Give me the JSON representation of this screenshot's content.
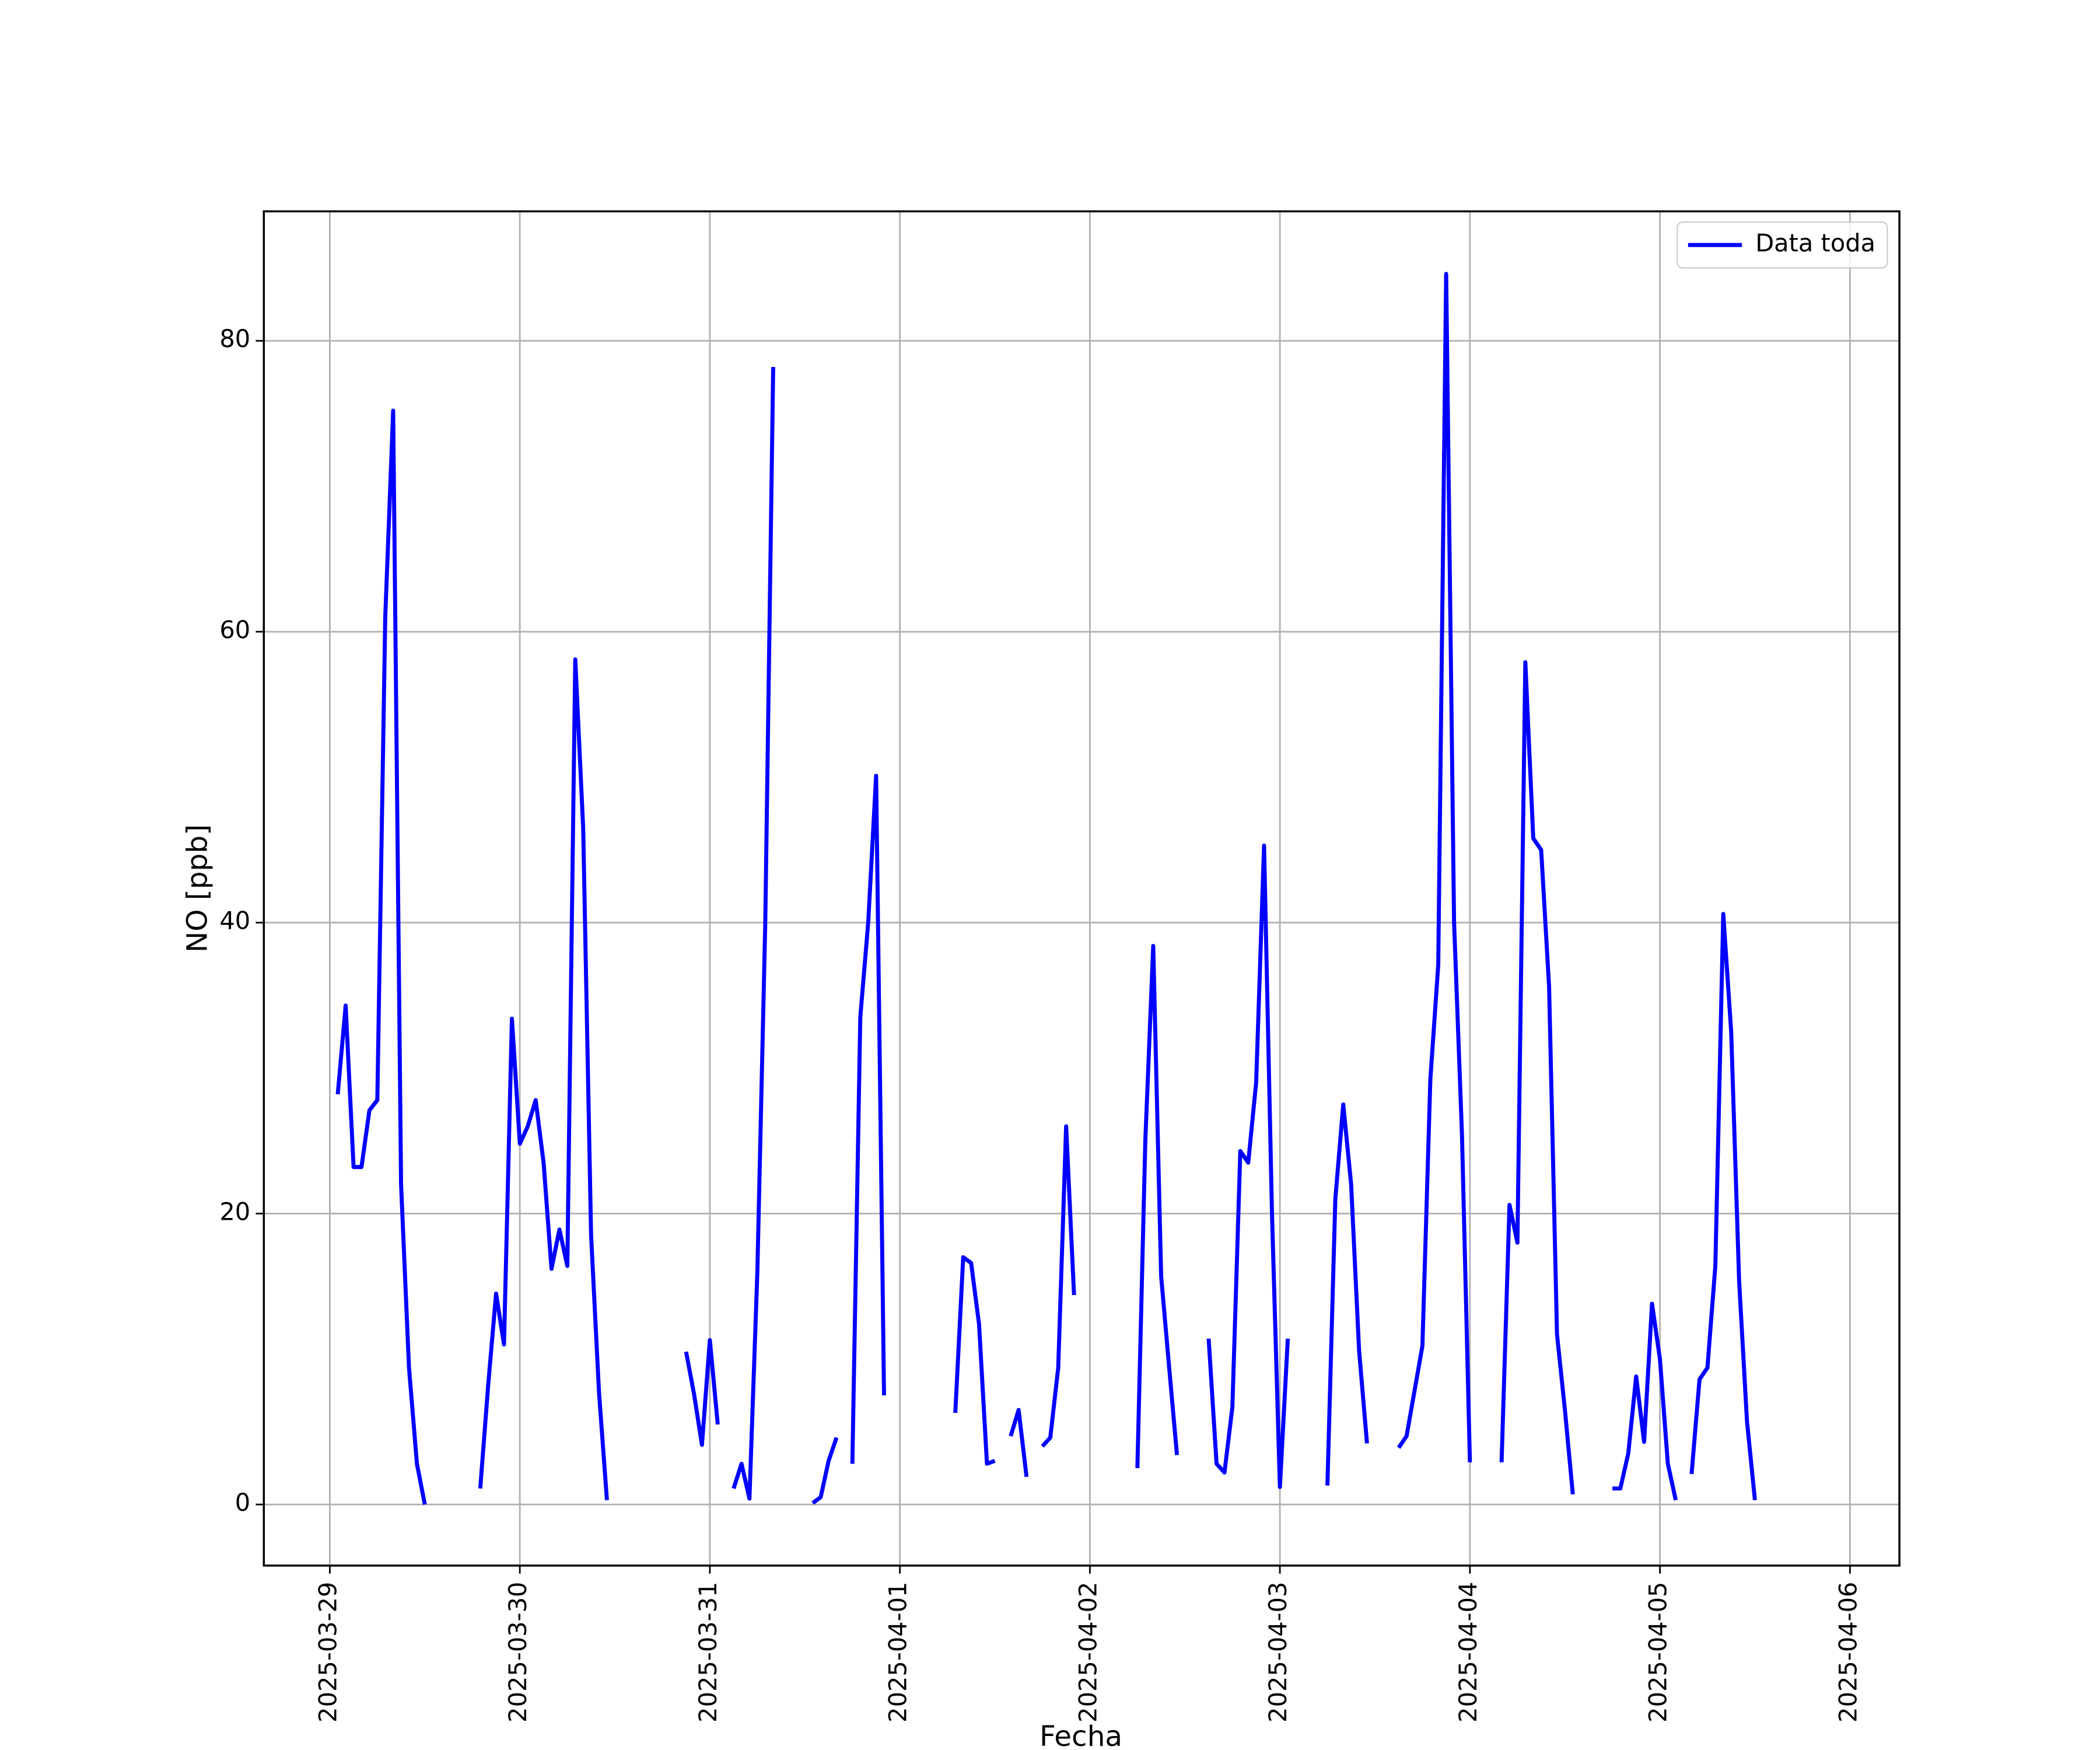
{
  "chart_data": {
    "type": "line",
    "xlabel": "Fecha",
    "ylabel": "NO [ppb]",
    "xlim": [
      "2025-03-28 15:40",
      "2025-04-06 06:15"
    ],
    "xticks": [
      "2025-03-29",
      "2025-03-30",
      "2025-03-31",
      "2025-04-01",
      "2025-04-02",
      "2025-04-03",
      "2025-04-04",
      "2025-04-05",
      "2025-04-06"
    ],
    "ylim": [
      -4.2,
      88.9
    ],
    "yticks": [
      0,
      20,
      40,
      60,
      80
    ],
    "grid": true,
    "legend": "upper right",
    "x": [
      "2025-03-29 01:00",
      "2025-03-29 02:00",
      "2025-03-29 03:00",
      "2025-03-29 04:00",
      "2025-03-29 05:00",
      "2025-03-29 06:00",
      "2025-03-29 07:00",
      "2025-03-29 08:00",
      "2025-03-29 09:00",
      "2025-03-29 10:00",
      "2025-03-29 11:00",
      "2025-03-29 12:00",
      "2025-03-29 13:00",
      "2025-03-29 19:00",
      "2025-03-29 20:00",
      "2025-03-29 21:00",
      "2025-03-29 22:00",
      "2025-03-29 23:00",
      "2025-03-30 00:00",
      "2025-03-30 01:00",
      "2025-03-30 02:00",
      "2025-03-30 03:00",
      "2025-03-30 04:00",
      "2025-03-30 05:00",
      "2025-03-30 06:00",
      "2025-03-30 07:00",
      "2025-03-30 08:00",
      "2025-03-30 09:00",
      "2025-03-30 10:00",
      "2025-03-30 11:00",
      "2025-03-30 12:00",
      "2025-03-30 21:00",
      "2025-03-30 22:00",
      "2025-03-30 23:00",
      "2025-03-31 00:00",
      "2025-03-31 01:00",
      "2025-03-31 02:00",
      "2025-03-31 03:00",
      "2025-03-31 04:00",
      "2025-03-31 05:00",
      "2025-03-31 06:00",
      "2025-03-31 07:00",
      "2025-03-31 08:00",
      "2025-03-31 09:00",
      "2025-03-31 13:00",
      "2025-03-31 14:00",
      "2025-03-31 15:00",
      "2025-03-31 16:00",
      "2025-03-31 17:00",
      "2025-03-31 18:00",
      "2025-03-31 19:00",
      "2025-03-31 20:00",
      "2025-03-31 21:00",
      "2025-03-31 22:00",
      "2025-03-31 23:00",
      "2025-04-01 07:00",
      "2025-04-01 08:00",
      "2025-04-01 09:00",
      "2025-04-01 10:00",
      "2025-04-01 11:00",
      "2025-04-01 12:00",
      "2025-04-01 13:00",
      "2025-04-01 14:00",
      "2025-04-01 15:00",
      "2025-04-01 16:00",
      "2025-04-01 17:00",
      "2025-04-01 18:00",
      "2025-04-01 19:00",
      "2025-04-01 20:00",
      "2025-04-01 21:00",
      "2025-04-01 22:00",
      "2025-04-01 23:00",
      "2025-04-02 06:00",
      "2025-04-02 07:00",
      "2025-04-02 08:00",
      "2025-04-02 09:00",
      "2025-04-02 10:00",
      "2025-04-02 11:00",
      "2025-04-02 12:00",
      "2025-04-02 15:00",
      "2025-04-02 16:00",
      "2025-04-02 17:00",
      "2025-04-02 18:00",
      "2025-04-02 19:00",
      "2025-04-02 20:00",
      "2025-04-02 21:00",
      "2025-04-02 22:00",
      "2025-04-02 23:00",
      "2025-04-03 00:00",
      "2025-04-03 01:00",
      "2025-04-03 02:00",
      "2025-04-03 06:00",
      "2025-04-03 07:00",
      "2025-04-03 08:00",
      "2025-04-03 09:00",
      "2025-04-03 10:00",
      "2025-04-03 11:00",
      "2025-04-03 12:00",
      "2025-04-03 15:00",
      "2025-04-03 16:00",
      "2025-04-03 17:00",
      "2025-04-03 18:00",
      "2025-04-03 19:00",
      "2025-04-03 20:00",
      "2025-04-03 21:00",
      "2025-04-03 22:00",
      "2025-04-03 23:00",
      "2025-04-04 00:00",
      "2025-04-04 01:00",
      "2025-04-04 04:00",
      "2025-04-04 05:00",
      "2025-04-04 06:00",
      "2025-04-04 07:00",
      "2025-04-04 08:00",
      "2025-04-04 09:00",
      "2025-04-04 10:00",
      "2025-04-04 11:00",
      "2025-04-04 12:00",
      "2025-04-04 13:00",
      "2025-04-04 14:00",
      "2025-04-04 18:00",
      "2025-04-04 19:00",
      "2025-04-04 20:00",
      "2025-04-04 21:00",
      "2025-04-04 22:00",
      "2025-04-04 23:00",
      "2025-04-05 00:00",
      "2025-04-05 01:00",
      "2025-04-05 02:00",
      "2025-04-05 03:00",
      "2025-04-05 04:00",
      "2025-04-05 05:00",
      "2025-04-05 06:00",
      "2025-04-05 07:00",
      "2025-04-05 08:00",
      "2025-04-05 09:00",
      "2025-04-05 10:00",
      "2025-04-05 11:00",
      "2025-04-05 12:00"
    ],
    "series": [
      {
        "name": "Data toda",
        "color": "#0000ff",
        "values": [
          28.2,
          34.3,
          23.2,
          23.2,
          27.1,
          27.8,
          61,
          75.2,
          22,
          9.4,
          2.8,
          0,
          null,
          1.1,
          8.2,
          14.5,
          11,
          33.4,
          24.8,
          26,
          27.8,
          23.5,
          16.2,
          18.9,
          16.4,
          58.1,
          46.5,
          18.5,
          7.7,
          0.3,
          null,
          10.5,
          7.6,
          4.1,
          11.3,
          5.5,
          null,
          1.1,
          2.8,
          0.4,
          16,
          40,
          78.2,
          null,
          0.1,
          0.5,
          3,
          4.6,
          null,
          2.8,
          33.5,
          40,
          50.1,
          7.5,
          null,
          6.3,
          17,
          16.6,
          12.4,
          2.8,
          3.0,
          null,
          4.7,
          6.5,
          1.9,
          null,
          4,
          4.6,
          9.4,
          26,
          14.4,
          null,
          2.5,
          25,
          38.4,
          15.7,
          9.5,
          3.4,
          null,
          11.4,
          2.8,
          2.2,
          6.7,
          24.3,
          23.5,
          29,
          45.3,
          20,
          1.2,
          11.4,
          null,
          1.3,
          21,
          27.5,
          22,
          10.6,
          4.2,
          null,
          3.9,
          4.7,
          7.8,
          10.9,
          29.2,
          37.1,
          84.6,
          40,
          25.4,
          2.9,
          null,
          2.9,
          20.6,
          18,
          57.9,
          45.8,
          45,
          35.6,
          11.7,
          6.5,
          0.7,
          null,
          1.1,
          1.1,
          3.5,
          8.8,
          4.3,
          13.8,
          10,
          2.8,
          0.3,
          null,
          2.1,
          8.6,
          9.4,
          16.4,
          40.6,
          32.5,
          15.4,
          5.7,
          0.3
        ]
      }
    ]
  }
}
